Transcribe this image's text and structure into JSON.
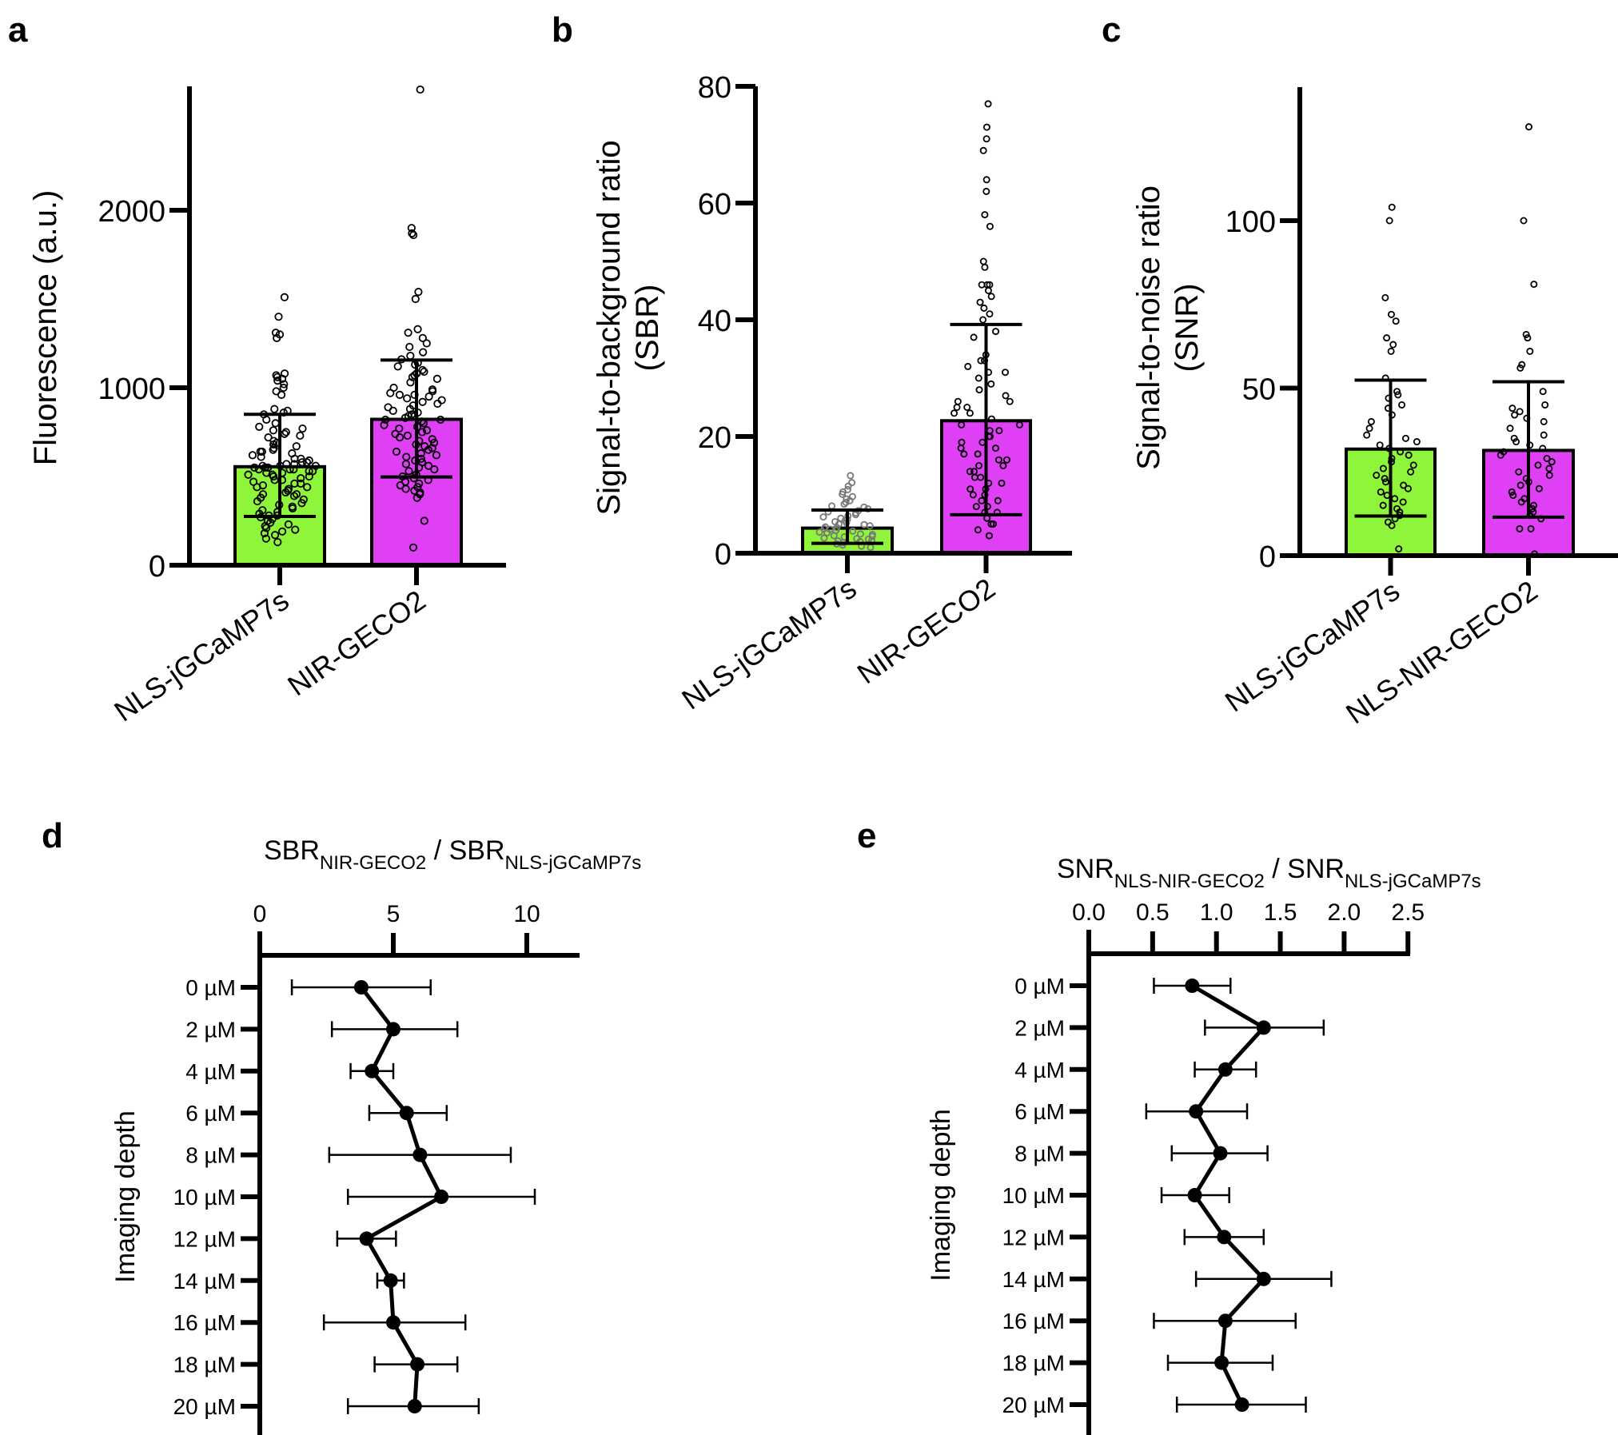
{
  "figure": {
    "panels": [
      "a",
      "b",
      "c",
      "d",
      "e"
    ]
  },
  "colors": {
    "green": "#8ef53a",
    "magenta": "#e040f5",
    "ink": "#000000",
    "dot_light": "#777777"
  },
  "chart_data": [
    {
      "panel": "a",
      "type": "bar",
      "ylabel": "Fluorescence  (a.u.)",
      "ylim": [
        0,
        2700
      ],
      "yticks": [
        0,
        1000,
        2000
      ],
      "yticklabels": [
        "0",
        "1000",
        "2000"
      ],
      "categories": [
        "NLS-jGCaMP7s",
        "NIR-GECO2"
      ],
      "bar_colors": [
        "#8ef53a",
        "#e040f5"
      ],
      "means": [
        555,
        822
      ],
      "error_low": [
        275,
        497
      ],
      "error_high": [
        850,
        1156
      ],
      "points": [
        [
          1510,
          1400,
          1310,
          1300,
          1280,
          1080,
          1070,
          1060,
          1050,
          1040,
          1020,
          1000,
          980,
          960,
          880,
          870,
          860,
          850,
          820,
          800,
          780,
          770,
          760,
          750,
          740,
          730,
          720,
          700,
          690,
          680,
          670,
          660,
          650,
          640,
          640,
          630,
          620,
          610,
          600,
          600,
          590,
          580,
          580,
          570,
          570,
          560,
          560,
          560,
          550,
          550,
          550,
          540,
          540,
          540,
          530,
          530,
          520,
          520,
          510,
          510,
          500,
          500,
          490,
          480,
          480,
          470,
          460,
          460,
          450,
          440,
          440,
          430,
          420,
          410,
          400,
          400,
          390,
          380,
          370,
          360,
          350,
          340,
          330,
          320,
          310,
          300,
          290,
          280,
          280,
          270,
          260,
          250,
          240,
          230,
          220,
          210,
          200,
          190,
          180,
          170,
          150,
          130
        ],
        [
          2680,
          1900,
          1870,
          1860,
          1540,
          1500,
          1330,
          1310,
          1280,
          1250,
          1230,
          1200,
          1180,
          1160,
          1140,
          1130,
          1120,
          1100,
          1090,
          1080,
          1070,
          1060,
          1050,
          1030,
          1000,
          990,
          980,
          970,
          960,
          960,
          950,
          940,
          930,
          920,
          910,
          900,
          890,
          880,
          870,
          860,
          850,
          840,
          840,
          830,
          820,
          820,
          810,
          800,
          790,
          780,
          770,
          760,
          750,
          740,
          730,
          720,
          710,
          700,
          690,
          680,
          670,
          660,
          650,
          640,
          630,
          620,
          610,
          600,
          590,
          580,
          570,
          560,
          550,
          540,
          530,
          510,
          500,
          490,
          480,
          470,
          460,
          450,
          440,
          430,
          420,
          410,
          400,
          380,
          250,
          100
        ]
      ]
    },
    {
      "panel": "b",
      "type": "bar",
      "ylabel": "Signal-to-background ratio (SBR)",
      "ylim": [
        0,
        80
      ],
      "yticks": [
        0,
        20,
        40,
        60,
        80
      ],
      "yticklabels": [
        "0",
        "20",
        "40",
        "60",
        "80"
      ],
      "categories": [
        "NLS-jGCaMP7s",
        "NIR-GECO2"
      ],
      "bar_colors": [
        "#8ef53a",
        "#e040f5"
      ],
      "means": [
        4.3,
        22.7
      ],
      "error_low": [
        1.7,
        6.6
      ],
      "error_high": [
        7.4,
        39.2
      ],
      "points": [
        [
          13.3,
          12.1,
          11.5,
          10.9,
          10.5,
          10.1,
          9.7,
          9.3,
          9.0,
          8.7,
          8.4,
          8.1,
          7.9,
          7.6,
          7.3,
          7.1,
          6.9,
          6.6,
          6.4,
          6.2,
          6.0,
          5.8,
          5.6,
          5.4,
          5.2,
          5.0,
          4.9,
          4.7,
          4.5,
          4.4,
          4.2,
          4.1,
          3.9,
          3.8,
          3.6,
          3.5,
          3.3,
          3.2,
          3.0,
          2.9,
          2.8,
          2.6,
          2.5,
          2.4,
          2.2,
          2.1,
          2.0,
          1.8,
          1.6,
          1.4,
          1.2,
          1.0
        ],
        [
          77,
          73,
          71,
          69,
          64,
          62,
          58,
          56,
          50,
          49,
          46,
          46,
          46,
          45,
          44,
          43,
          42,
          41,
          40,
          38,
          37,
          34,
          33,
          33,
          32,
          31,
          31,
          30,
          29,
          28,
          27,
          26,
          26,
          25,
          25,
          24,
          24,
          23,
          22,
          22,
          21,
          21,
          20,
          20,
          19,
          19,
          18,
          18,
          17,
          17,
          16,
          16,
          15,
          15,
          14,
          14,
          13,
          13,
          12,
          12,
          11,
          11,
          10,
          10,
          9,
          9,
          8,
          8,
          7,
          7,
          6,
          6,
          5,
          5,
          4,
          3
        ]
      ]
    },
    {
      "panel": "c",
      "type": "bar",
      "ylabel": "Signal-to-noise ratio (SNR)",
      "ylim": [
        0,
        140
      ],
      "yticks": [
        0,
        50,
        100
      ],
      "yticklabels": [
        "0",
        "50",
        "100"
      ],
      "categories": [
        "NLS-jGCaMP7s",
        "NLS-NIR-GECO2"
      ],
      "bar_colors": [
        "#8ef53a",
        "#e040f5"
      ],
      "means": [
        31.8,
        31.4
      ],
      "error_low": [
        11.8,
        11.5
      ],
      "error_high": [
        52.4,
        51.9
      ],
      "points": [
        [
          104,
          100,
          77,
          72,
          70,
          65,
          63,
          61,
          53,
          49,
          48,
          47,
          45,
          44,
          42,
          40,
          38,
          36,
          35,
          34,
          33,
          32,
          31,
          30,
          29,
          28,
          27,
          26,
          25,
          24,
          23,
          22,
          21,
          20,
          19,
          18,
          17,
          16,
          15,
          14,
          13,
          12,
          11,
          10,
          9,
          2
        ],
        [
          128,
          100,
          81,
          66,
          65,
          61,
          57,
          56,
          49,
          45,
          44,
          43,
          42,
          41,
          40,
          38,
          36,
          35,
          34,
          33,
          32,
          31,
          30,
          29,
          28,
          27,
          26,
          25,
          24,
          23,
          22,
          21,
          20,
          19,
          18,
          17,
          16,
          15,
          14,
          13,
          12,
          11,
          8,
          8,
          0.5
        ]
      ]
    },
    {
      "panel": "d",
      "type": "line",
      "orientation": "horizontal",
      "title_main_1": "SBR",
      "title_sub_1": "NIR-GECO2",
      "title_sep": "/",
      "title_main_2": "SBR",
      "title_sub_2": "NLS-jGCaMP7s",
      "ylabel": "Imaging depth",
      "xlim": [
        0,
        12
      ],
      "xticks": [
        0,
        5,
        10
      ],
      "xticklabels": [
        "0",
        "5",
        "10"
      ],
      "categories": [
        "0 µM",
        "2 µM",
        "4 µM",
        "6 µM",
        "8 µM",
        "10 µM",
        "12 µM",
        "14 µM",
        "16 µM",
        "18 µM",
        "20 µM"
      ],
      "values": [
        3.8,
        5.0,
        4.2,
        5.5,
        6.0,
        6.8,
        4.0,
        4.9,
        5.0,
        5.9,
        5.8
      ],
      "error_low": [
        1.2,
        2.7,
        3.4,
        4.1,
        2.6,
        3.3,
        2.9,
        4.4,
        2.4,
        4.3,
        3.3
      ],
      "error_high": [
        6.4,
        7.4,
        5.0,
        7.0,
        9.4,
        10.3,
        5.1,
        5.4,
        7.7,
        7.4,
        8.2
      ]
    },
    {
      "panel": "e",
      "type": "line",
      "orientation": "horizontal",
      "title_main_1": "SNR",
      "title_sub_1": "NLS-NIR-GECO2",
      "title_sep": "/",
      "title_main_2": "SNR",
      "title_sub_2": "NLS-jGCaMP7s",
      "ylabel": "Imaging depth",
      "xlim": [
        0,
        2.5
      ],
      "xticks": [
        0,
        0.5,
        1.0,
        1.5,
        2.0,
        2.5
      ],
      "xticklabels": [
        "0.0",
        "0.5",
        "1.0",
        "1.5",
        "2.0",
        "2.5"
      ],
      "categories": [
        "0 µM",
        "2 µM",
        "4 µM",
        "6 µM",
        "8 µM",
        "10 µM",
        "12 µM",
        "14 µM",
        "16 µM",
        "18 µM",
        "20 µM"
      ],
      "values": [
        0.81,
        1.37,
        1.07,
        0.84,
        1.03,
        0.83,
        1.06,
        1.37,
        1.07,
        1.04,
        1.2
      ],
      "error_low": [
        0.51,
        0.91,
        0.83,
        0.45,
        0.65,
        0.57,
        0.75,
        0.84,
        0.51,
        0.62,
        0.69
      ],
      "error_high": [
        1.11,
        1.84,
        1.31,
        1.24,
        1.4,
        1.1,
        1.37,
        1.9,
        1.62,
        1.44,
        1.7
      ]
    }
  ]
}
